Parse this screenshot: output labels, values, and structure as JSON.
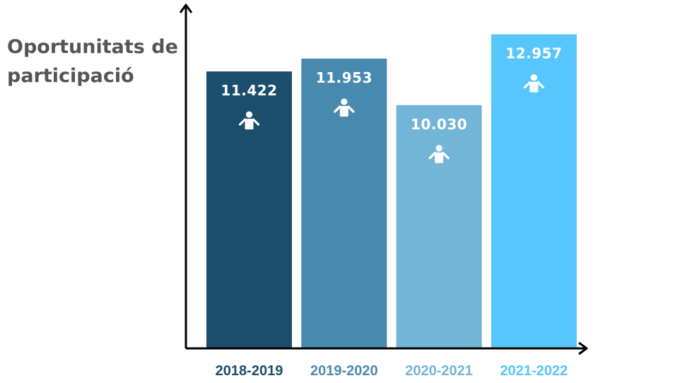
{
  "chart_data": {
    "type": "bar",
    "title": "Oportunitats de participació",
    "categories": [
      "2018-2019",
      "2019-2020",
      "2020-2021",
      "2021-2022"
    ],
    "values": [
      11422,
      11953,
      10030,
      12957
    ],
    "value_labels": [
      "11.422",
      "11.953",
      "10.030",
      "12.957"
    ],
    "bar_colors": [
      "#1b4e6d",
      "#4889b0",
      "#73b5d9",
      "#56c6fc"
    ],
    "tick_label_colors": [
      "#1b4e6d",
      "#4889b0",
      "#73b5d9",
      "#56c6fc"
    ],
    "bar_icon": "person-icon",
    "ylim": [
      0,
      13500
    ],
    "grid": false,
    "legend": "none"
  }
}
